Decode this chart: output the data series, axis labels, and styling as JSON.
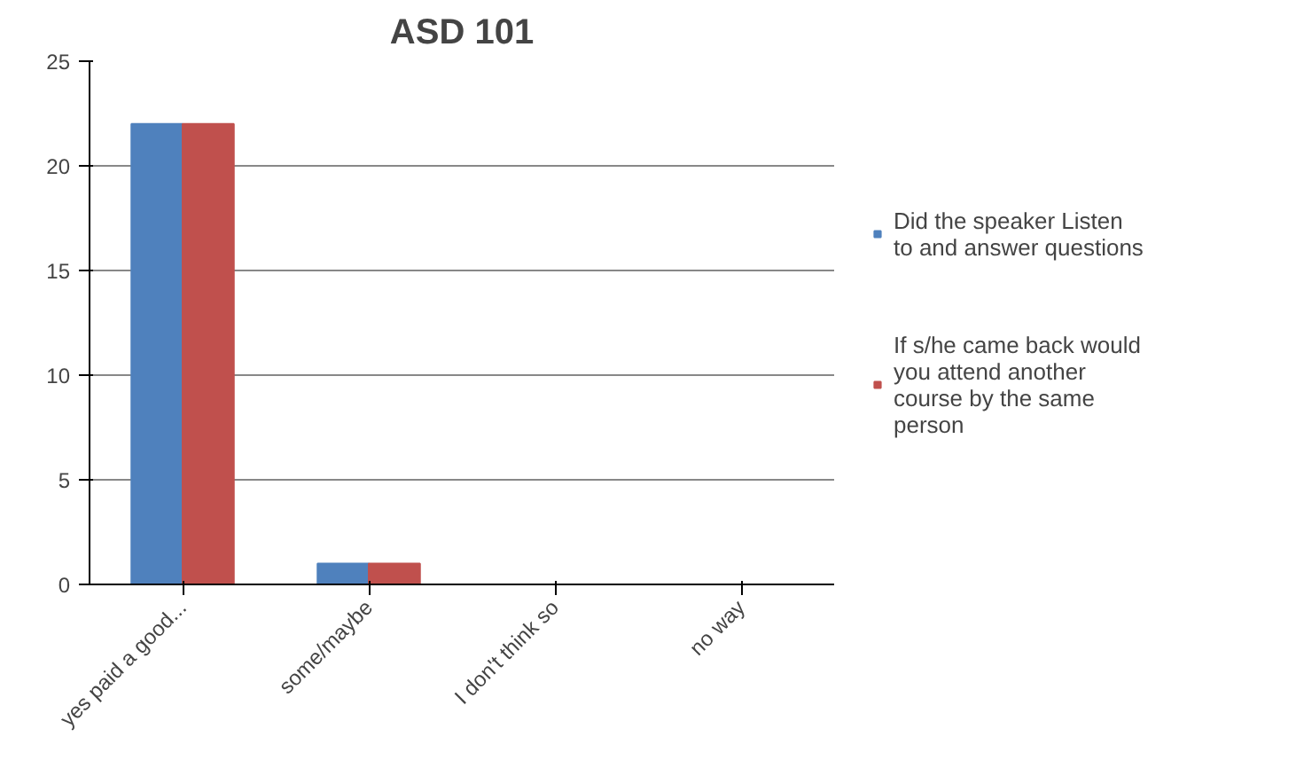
{
  "chart_data": {
    "type": "bar",
    "title": "ASD 101",
    "categories": [
      "yes paid a good...",
      "some/maybe",
      "I don't think so",
      "no way"
    ],
    "series": [
      {
        "name": "Did the speaker Listen to and answer questions",
        "color": "#4f81bd",
        "values": [
          22,
          1,
          0,
          0
        ]
      },
      {
        "name": "If s/he came back would you attend another course by the same person",
        "color": "#c0504d",
        "values": [
          22,
          1,
          0,
          0
        ]
      }
    ],
    "ylim": [
      0,
      25
    ],
    "yticks": [
      0,
      5,
      10,
      15,
      20,
      25
    ],
    "grid": "y",
    "legend": "right"
  }
}
